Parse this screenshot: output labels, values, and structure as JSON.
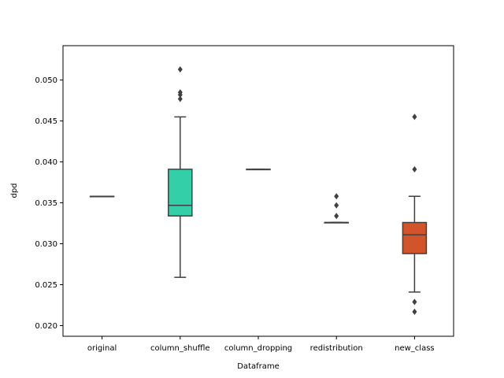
{
  "chart_data": {
    "type": "box",
    "title": "",
    "xlabel": "Dataframe",
    "ylabel": "dpd",
    "ylim": [
      0.0187,
      0.0542
    ],
    "yticks": [
      "0.020",
      "0.025",
      "0.030",
      "0.035",
      "0.040",
      "0.045",
      "0.050"
    ],
    "yticks_values": [
      0.02,
      0.025,
      0.03,
      0.035,
      0.04,
      0.045,
      0.05
    ],
    "categories": [
      "original",
      "column_shuffle",
      "column_dropping",
      "redistribution",
      "new_class"
    ],
    "boxes": [
      {
        "category": "original",
        "color": "#ffffff",
        "whislo": 0.0358,
        "q1": 0.0358,
        "median": 0.0358,
        "q3": 0.0358,
        "whishi": 0.0358,
        "fliers": []
      },
      {
        "category": "column_shuffle",
        "color": "#33cfa8",
        "whislo": 0.0259,
        "q1": 0.0334,
        "median": 0.0347,
        "q3": 0.0391,
        "whishi": 0.0455,
        "fliers": [
          0.0477,
          0.0482,
          0.0485,
          0.0513
        ]
      },
      {
        "category": "column_dropping",
        "color": "#ffffff",
        "whislo": 0.0391,
        "q1": 0.0391,
        "median": 0.0391,
        "q3": 0.0391,
        "whishi": 0.0391,
        "fliers": []
      },
      {
        "category": "redistribution",
        "color": "#e8c98a",
        "whislo": 0.0326,
        "q1": 0.0326,
        "median": 0.0326,
        "q3": 0.0326,
        "whishi": 0.0326,
        "fliers": [
          0.0334,
          0.0347,
          0.0358
        ]
      },
      {
        "category": "new_class",
        "color": "#d1542a",
        "whislo": 0.0241,
        "q1": 0.0288,
        "median": 0.0311,
        "q3": 0.0326,
        "whishi": 0.0358,
        "fliers": [
          0.0217,
          0.0229,
          0.0391,
          0.0455
        ]
      }
    ],
    "line_color": "#404040",
    "grid": false,
    "legend": "none"
  }
}
